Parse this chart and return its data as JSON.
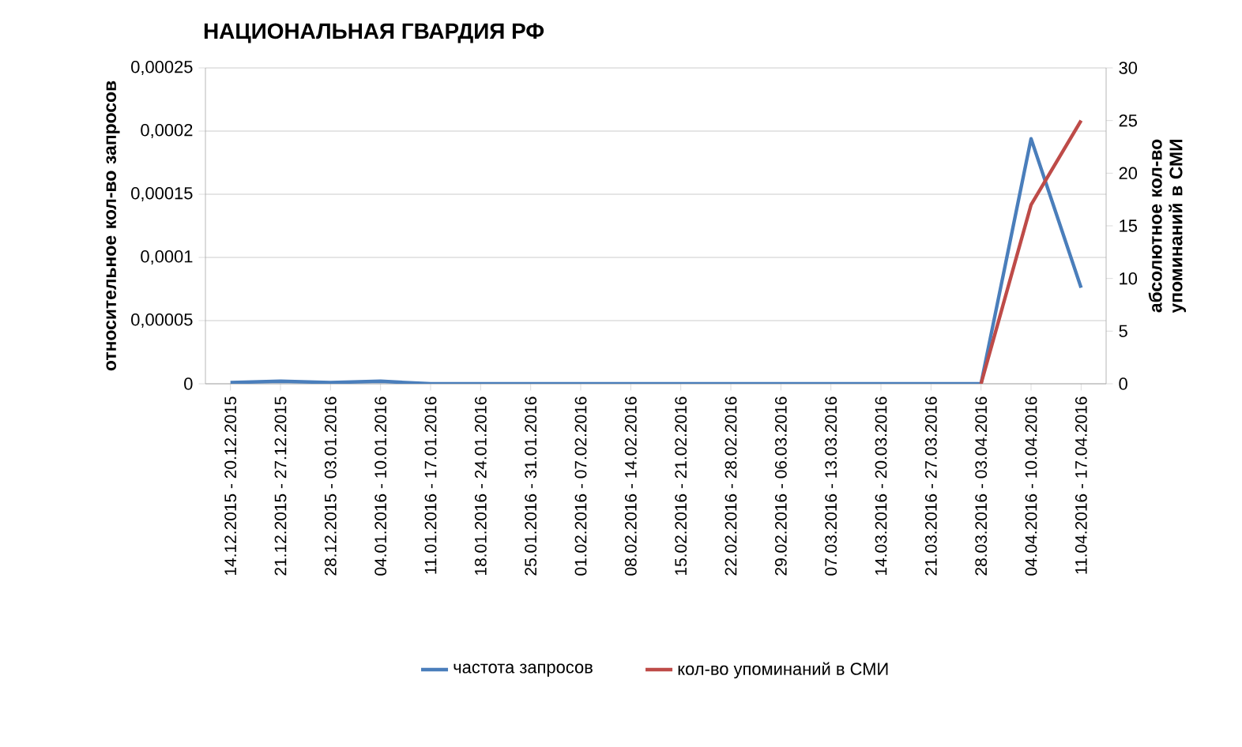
{
  "chart_data": {
    "type": "line",
    "title": "НАЦИОНАЛЬНАЯ ГВАРДИЯ РФ",
    "categories": [
      "14.12.2015 - 20.12.2015",
      "21.12.2015 - 27.12.2015",
      "28.12.2015 - 03.01.2016",
      "04.01.2016 - 10.01.2016",
      "11.01.2016 - 17.01.2016",
      "18.01.2016 - 24.01.2016",
      "25.01.2016 - 31.01.2016",
      "01.02.2016 - 07.02.2016",
      "08.02.2016 - 14.02.2016",
      "15.02.2016 - 21.02.2016",
      "22.02.2016 - 28.02.2016",
      "29.02.2016 - 06.03.2016",
      "07.03.2016 - 13.03.2016",
      "14.03.2016 - 20.03.2016",
      "21.03.2016 - 27.03.2016",
      "28.03.2016 - 03.04.2016",
      "04.04.2016 - 10.04.2016",
      "11.04.2016 - 17.04.2016"
    ],
    "series": [
      {
        "name": "частота запросов",
        "color": "#4a7ebb",
        "values": [
          1e-06,
          2e-06,
          1e-06,
          2e-06,
          0,
          0,
          0,
          0,
          0,
          0,
          0,
          0,
          0,
          0,
          0,
          0,
          0.000194,
          7.6e-05
        ]
      },
      {
        "name": "кол-во упоминаний в СМИ",
        "color": "#be4b48",
        "axis": "y2",
        "values": [
          null,
          null,
          null,
          null,
          null,
          null,
          null,
          null,
          null,
          null,
          null,
          null,
          null,
          null,
          null,
          0,
          17,
          25
        ]
      }
    ],
    "ylabel": "относительное кол-во запросов",
    "y2label": "абсолютное кол-во упоминаний в СМИ",
    "ylim": [
      0,
      0.00025
    ],
    "yticks": [
      {
        "value": 0,
        "label": "0"
      },
      {
        "value": 5e-05,
        "label": "0,00005"
      },
      {
        "value": 0.0001,
        "label": "0,0001"
      },
      {
        "value": 0.00015,
        "label": "0,00015"
      },
      {
        "value": 0.0002,
        "label": "0,0002"
      },
      {
        "value": 0.00025,
        "label": "0,00025"
      }
    ],
    "y2lim": [
      0,
      30
    ],
    "y2ticks": [
      0,
      5,
      10,
      15,
      20,
      25,
      30
    ],
    "grid": "y",
    "legend": "bottom",
    "marker": "none",
    "line_style": "solid"
  }
}
